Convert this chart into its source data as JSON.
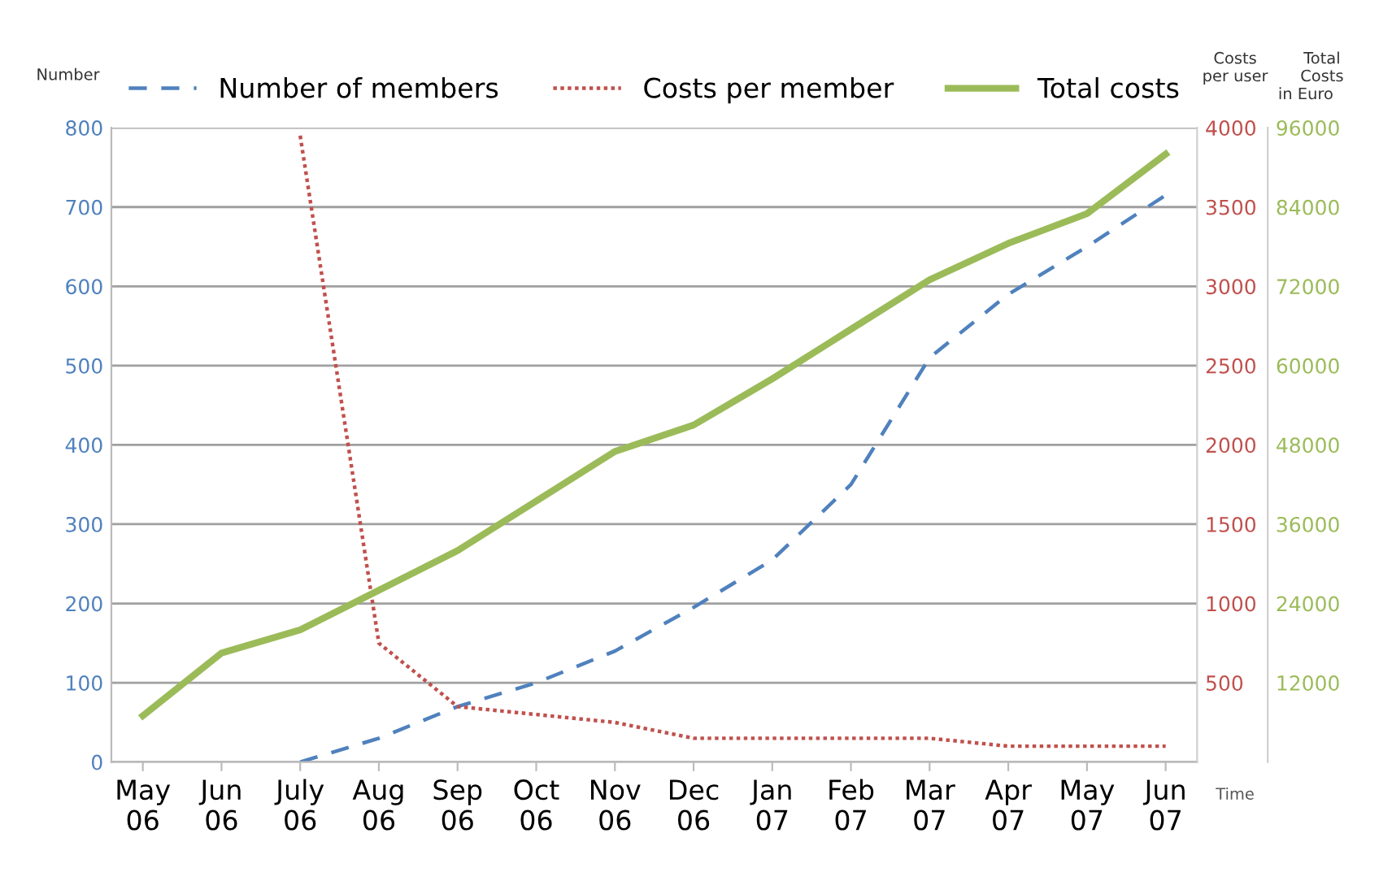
{
  "chart_data": {
    "type": "line",
    "categories": [
      "May\n06",
      "Jun\n06",
      "July\n06",
      "Aug\n06",
      "Sep\n06",
      "Oct\n06",
      "Nov\n06",
      "Dec\n06",
      "Jan\n07",
      "Feb\n07",
      "Mar\n07",
      "Apr\n07",
      "May\n07",
      "Jun\n07"
    ],
    "xlabel": "Time",
    "ylabel": "Number",
    "y2label": "Costs\nper user",
    "y3label": "Total\nCosts",
    "annotations": [
      "in Euro"
    ],
    "ylim": [
      0,
      800
    ],
    "yticks": [
      0,
      100,
      200,
      300,
      400,
      500,
      600,
      700,
      800
    ],
    "y2lim": [
      0,
      4000
    ],
    "y2ticks": [
      500,
      1000,
      1500,
      2000,
      2500,
      3000,
      3500,
      4000
    ],
    "y3lim": [
      0,
      96000
    ],
    "y3ticks": [
      12000,
      24000,
      36000,
      48000,
      60000,
      72000,
      84000,
      96000
    ],
    "grid": "y",
    "legend": "top",
    "marker": "none",
    "series": [
      {
        "name": "Number of members",
        "color": "#4f81bd",
        "line_style": "dashed",
        "values": [
          null,
          null,
          0,
          30,
          70,
          100,
          140,
          195,
          255,
          350,
          510,
          590,
          650,
          715
        ]
      },
      {
        "name": "Costs per member",
        "color": "#c0504d",
        "line_style": "dotted",
        "axis": "y2",
        "values": [
          null,
          null,
          3950,
          750,
          350,
          300,
          250,
          150,
          150,
          150,
          150,
          100,
          100,
          100
        ]
      },
      {
        "name": "Total costs",
        "color": "#9bbb59",
        "line_style": "solid",
        "axis": "y3",
        "values": [
          7000,
          16500,
          20000,
          26000,
          32000,
          39500,
          47000,
          51000,
          58000,
          65500,
          73000,
          78500,
          83000,
          92000
        ]
      }
    ]
  }
}
